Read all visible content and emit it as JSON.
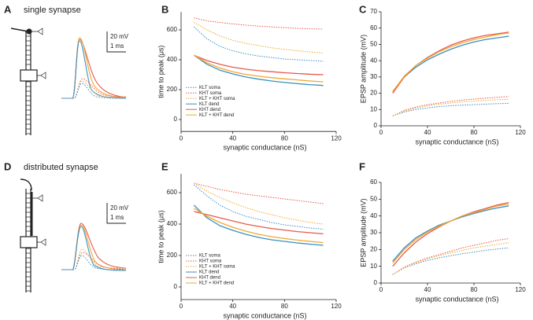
{
  "panel_A": {
    "label": "A",
    "title": "single synapse",
    "scale_v": "20 mV",
    "scale_t": "1 ms"
  },
  "panel_D": {
    "label": "D",
    "title": "distributed synapse",
    "scale_v": "20 mV",
    "scale_t": "1 ms"
  },
  "chart_data": [
    {
      "type": "line",
      "panel_label": "B",
      "xlabel": "synaptic conductance (nS)",
      "ylabel": "time to peak (μs)",
      "xlim": [
        0,
        120
      ],
      "xticks": [
        0,
        40,
        80,
        120
      ],
      "ylim": [
        -80,
        720
      ],
      "yticks": [
        0,
        200,
        400,
        600
      ],
      "legend": true,
      "legend_position": "lower left",
      "x": [
        10,
        20,
        30,
        40,
        50,
        60,
        70,
        80,
        90,
        100,
        110
      ],
      "series": [
        {
          "name": "KLT soma",
          "color": "#3a8fc4",
          "style": "dotted",
          "values": [
            620,
            540,
            490,
            460,
            440,
            425,
            415,
            405,
            400,
            395,
            390
          ]
        },
        {
          "name": "KHT soma",
          "color": "#e8584a",
          "style": "dotted",
          "values": [
            680,
            660,
            650,
            640,
            632,
            625,
            620,
            615,
            610,
            607,
            605
          ]
        },
        {
          "name": "KLT + KHT soma",
          "color": "#f0a830",
          "style": "dotted",
          "values": [
            650,
            600,
            560,
            530,
            510,
            495,
            480,
            470,
            460,
            452,
            445
          ]
        },
        {
          "name": "KLT dend",
          "color": "#3a8fc4",
          "style": "solid",
          "values": [
            430,
            370,
            330,
            305,
            285,
            270,
            258,
            248,
            240,
            233,
            228
          ]
        },
        {
          "name": "KHT dend",
          "color": "#e8584a",
          "style": "solid",
          "values": [
            430,
            395,
            370,
            350,
            337,
            327,
            320,
            313,
            308,
            303,
            300
          ]
        },
        {
          "name": "KLT + KHT dend",
          "color": "#f0a830",
          "style": "solid",
          "values": [
            430,
            380,
            345,
            320,
            302,
            290,
            280,
            272,
            265,
            258,
            252
          ]
        }
      ]
    },
    {
      "type": "line",
      "panel_label": "C",
      "xlabel": "synaptic conductance (nS)",
      "ylabel": "EPSP amplitude (mV)",
      "xlim": [
        0,
        120
      ],
      "xticks": [
        0,
        40,
        80,
        120
      ],
      "ylim": [
        0,
        70
      ],
      "yticks": [
        0,
        10,
        20,
        30,
        40,
        50,
        60,
        70
      ],
      "legend": false,
      "x": [
        10,
        20,
        30,
        40,
        50,
        60,
        70,
        80,
        90,
        100,
        110
      ],
      "series": [
        {
          "name": "KLT soma",
          "color": "#3a8fc4",
          "style": "dotted",
          "values": [
            6,
            8.5,
            10,
            11,
            11.8,
            12.3,
            12.7,
            13,
            13.3,
            13.6,
            13.8
          ]
        },
        {
          "name": "KHT soma",
          "color": "#e8584a",
          "style": "dotted",
          "values": [
            6,
            9.5,
            11.5,
            13,
            14,
            15,
            15.8,
            16.4,
            17,
            17.5,
            18
          ]
        },
        {
          "name": "KLT + KHT soma",
          "color": "#f0a830",
          "style": "dotted",
          "values": [
            6,
            9,
            11,
            12.3,
            13.3,
            14,
            14.7,
            15.2,
            15.7,
            16,
            16.3
          ]
        },
        {
          "name": "KLT dend",
          "color": "#3a8fc4",
          "style": "solid",
          "values": [
            21,
            30,
            36,
            40.5,
            44,
            47,
            49.5,
            51.5,
            53,
            54,
            55
          ]
        },
        {
          "name": "KHT dend",
          "color": "#e8584a",
          "style": "solid",
          "values": [
            20,
            30,
            37,
            42,
            46,
            49.5,
            52,
            54,
            55.5,
            56.5,
            57.5
          ]
        },
        {
          "name": "KLT + KHT dend",
          "color": "#f0a830",
          "style": "solid",
          "values": [
            21,
            30.5,
            37,
            41.5,
            45.5,
            48.5,
            51,
            53,
            54.5,
            56,
            57
          ]
        }
      ]
    },
    {
      "type": "line",
      "panel_label": "E",
      "xlabel": "synaptic conductance (nS)",
      "ylabel": "time to peak (μs)",
      "xlim": [
        0,
        120
      ],
      "xticks": [
        0,
        40,
        80,
        120
      ],
      "ylim": [
        -80,
        720
      ],
      "yticks": [
        0,
        200,
        400,
        600
      ],
      "legend": true,
      "legend_position": "lower left",
      "x": [
        10,
        20,
        30,
        40,
        50,
        60,
        70,
        80,
        90,
        100,
        110
      ],
      "series": [
        {
          "name": "KLT soma",
          "color": "#3a8fc4",
          "style": "dotted",
          "values": [
            650,
            580,
            520,
            480,
            450,
            430,
            410,
            395,
            385,
            375,
            368
          ]
        },
        {
          "name": "KHT soma",
          "color": "#e8584a",
          "style": "dotted",
          "values": [
            660,
            640,
            620,
            605,
            590,
            580,
            570,
            560,
            550,
            540,
            530
          ]
        },
        {
          "name": "KLT + KHT soma",
          "color": "#f0a830",
          "style": "dotted",
          "values": [
            660,
            610,
            570,
            535,
            505,
            480,
            460,
            440,
            425,
            410,
            400
          ]
        },
        {
          "name": "KLT dend",
          "color": "#3a8fc4",
          "style": "solid",
          "values": [
            520,
            440,
            390,
            360,
            335,
            315,
            300,
            290,
            280,
            272,
            265
          ]
        },
        {
          "name": "KHT dend",
          "color": "#e8584a",
          "style": "solid",
          "values": [
            480,
            460,
            440,
            420,
            400,
            385,
            372,
            362,
            352,
            345,
            338
          ]
        },
        {
          "name": "KLT + KHT dend",
          "color": "#f0a830",
          "style": "solid",
          "values": [
            500,
            450,
            410,
            380,
            355,
            335,
            320,
            308,
            298,
            290,
            282
          ]
        }
      ]
    },
    {
      "type": "line",
      "panel_label": "F",
      "xlabel": "synaptic conductance (nS)",
      "ylabel": "EPSP amplitude (mV)",
      "xlim": [
        0,
        120
      ],
      "xticks": [
        0,
        40,
        80,
        120
      ],
      "ylim": [
        0,
        60
      ],
      "yticks": [
        0,
        10,
        20,
        30,
        40,
        50,
        60
      ],
      "legend": false,
      "x": [
        10,
        20,
        30,
        40,
        50,
        60,
        70,
        80,
        90,
        100,
        110
      ],
      "series": [
        {
          "name": "KLT soma",
          "color": "#3a8fc4",
          "style": "dotted",
          "values": [
            5,
            9,
            11.5,
            13.5,
            15,
            16.3,
            17.5,
            18.5,
            19.5,
            20.3,
            21
          ]
        },
        {
          "name": "KHT soma",
          "color": "#e8584a",
          "style": "dotted",
          "values": [
            5,
            9.5,
            12.5,
            15,
            17,
            19,
            21,
            22.5,
            24,
            25.5,
            26.5
          ]
        },
        {
          "name": "KLT + KHT soma",
          "color": "#f0a830",
          "style": "dotted",
          "values": [
            5,
            9,
            12,
            14.5,
            16.3,
            18,
            19.5,
            21,
            22,
            23,
            24
          ]
        },
        {
          "name": "KLT dend",
          "color": "#3a8fc4",
          "style": "solid",
          "values": [
            13,
            21,
            27,
            31,
            34.5,
            37,
            39.5,
            41.5,
            43.3,
            44.8,
            46
          ]
        },
        {
          "name": "KHT dend",
          "color": "#e8584a",
          "style": "solid",
          "values": [
            10,
            18,
            24.5,
            29.5,
            33.5,
            37,
            40,
            42.5,
            44.5,
            46.5,
            48
          ]
        },
        {
          "name": "KLT + KHT dend",
          "color": "#f0a830",
          "style": "solid",
          "values": [
            12,
            20,
            26,
            30.5,
            34,
            37,
            40,
            42,
            44,
            46,
            47
          ]
        }
      ]
    }
  ]
}
